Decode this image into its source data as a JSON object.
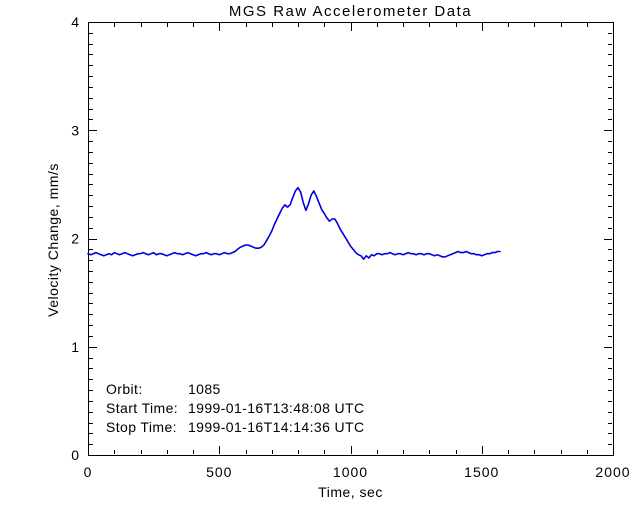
{
  "annotations": {
    "orbit_label": "Orbit:",
    "orbit_value": "1085",
    "start_label": "Start Time:",
    "start_value": "1999-01-16T13:48:08 UTC",
    "stop_label": "Stop Time:",
    "stop_value": "1999-01-16T14:14:36 UTC"
  },
  "chart_data": {
    "type": "line",
    "title": "MGS Raw Accelerometer Data",
    "xlabel": "Time, sec",
    "ylabel": "Velocity Change, mm/s",
    "xlim": [
      0,
      2000
    ],
    "ylim": [
      0,
      4
    ],
    "xticks": [
      0,
      500,
      1000,
      1500,
      2000
    ],
    "yticks": [
      0,
      1,
      2,
      3,
      4
    ],
    "x_minor_step": 100,
    "y_minor_step": 0.1,
    "grid": false,
    "legend": "none",
    "line_color": "#0000e0",
    "axis_color": "#000000",
    "series": [
      {
        "name": "velocity_change",
        "x": [
          0,
          10,
          20,
          30,
          40,
          50,
          60,
          70,
          80,
          90,
          100,
          110,
          120,
          130,
          140,
          150,
          160,
          170,
          180,
          190,
          200,
          210,
          220,
          230,
          240,
          250,
          260,
          270,
          280,
          290,
          300,
          310,
          320,
          330,
          340,
          350,
          360,
          370,
          380,
          390,
          400,
          410,
          420,
          430,
          440,
          450,
          460,
          470,
          480,
          490,
          500,
          510,
          520,
          530,
          540,
          550,
          560,
          570,
          580,
          590,
          600,
          610,
          620,
          630,
          640,
          650,
          660,
          670,
          680,
          690,
          700,
          710,
          720,
          730,
          740,
          750,
          760,
          770,
          780,
          790,
          800,
          810,
          820,
          830,
          840,
          850,
          860,
          870,
          880,
          890,
          900,
          910,
          920,
          930,
          940,
          950,
          960,
          970,
          980,
          990,
          1000,
          1010,
          1020,
          1030,
          1040,
          1050,
          1060,
          1070,
          1080,
          1090,
          1100,
          1110,
          1120,
          1130,
          1140,
          1150,
          1160,
          1170,
          1180,
          1190,
          1200,
          1210,
          1220,
          1230,
          1240,
          1250,
          1260,
          1270,
          1280,
          1290,
          1300,
          1310,
          1320,
          1330,
          1340,
          1350,
          1360,
          1370,
          1380,
          1390,
          1400,
          1410,
          1420,
          1430,
          1440,
          1450,
          1460,
          1470,
          1480,
          1490,
          1500,
          1510,
          1520,
          1530,
          1540,
          1550,
          1560,
          1570
        ],
        "y": [
          1.86,
          1.85,
          1.86,
          1.87,
          1.86,
          1.85,
          1.84,
          1.85,
          1.86,
          1.85,
          1.87,
          1.86,
          1.85,
          1.86,
          1.87,
          1.86,
          1.85,
          1.84,
          1.85,
          1.86,
          1.86,
          1.87,
          1.86,
          1.85,
          1.86,
          1.87,
          1.85,
          1.86,
          1.86,
          1.85,
          1.84,
          1.85,
          1.86,
          1.87,
          1.86,
          1.86,
          1.85,
          1.86,
          1.87,
          1.86,
          1.85,
          1.84,
          1.85,
          1.86,
          1.86,
          1.87,
          1.86,
          1.85,
          1.86,
          1.86,
          1.85,
          1.86,
          1.87,
          1.86,
          1.86,
          1.87,
          1.88,
          1.9,
          1.92,
          1.93,
          1.94,
          1.94,
          1.93,
          1.92,
          1.91,
          1.91,
          1.92,
          1.94,
          1.98,
          2.02,
          2.07,
          2.13,
          2.18,
          2.23,
          2.28,
          2.31,
          2.29,
          2.31,
          2.38,
          2.44,
          2.47,
          2.43,
          2.33,
          2.26,
          2.32,
          2.4,
          2.44,
          2.39,
          2.33,
          2.27,
          2.23,
          2.19,
          2.16,
          2.18,
          2.18,
          2.14,
          2.09,
          2.05,
          2.01,
          1.97,
          1.93,
          1.9,
          1.87,
          1.85,
          1.84,
          1.81,
          1.84,
          1.82,
          1.85,
          1.84,
          1.86,
          1.86,
          1.85,
          1.86,
          1.86,
          1.87,
          1.86,
          1.85,
          1.86,
          1.86,
          1.85,
          1.86,
          1.87,
          1.86,
          1.86,
          1.85,
          1.86,
          1.86,
          1.85,
          1.86,
          1.86,
          1.85,
          1.84,
          1.85,
          1.84,
          1.83,
          1.83,
          1.84,
          1.85,
          1.86,
          1.87,
          1.88,
          1.87,
          1.87,
          1.88,
          1.87,
          1.86,
          1.86,
          1.85,
          1.85,
          1.84,
          1.85,
          1.86,
          1.86,
          1.87,
          1.87,
          1.88,
          1.88
        ]
      }
    ]
  }
}
